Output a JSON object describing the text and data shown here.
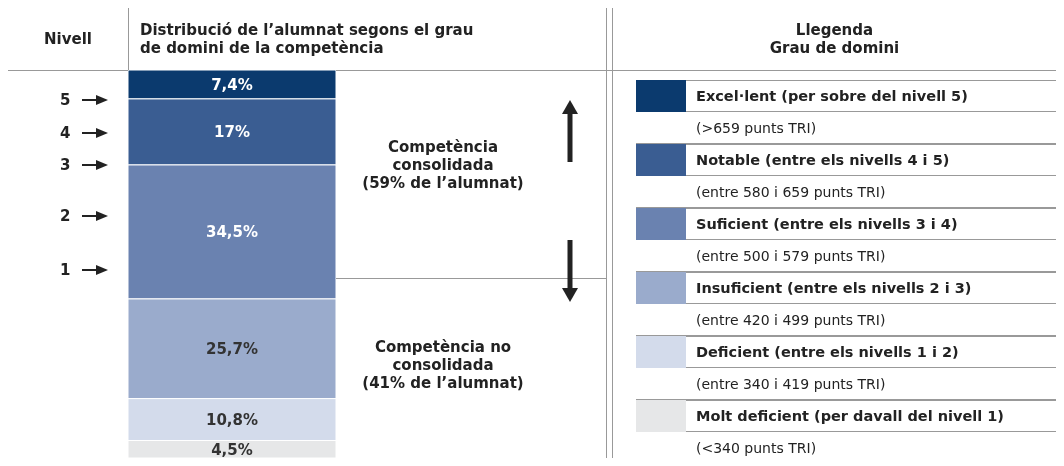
{
  "chart_data": {
    "type": "bar",
    "stacked": true,
    "title": "Distribució de l’alumnat segons el grau de domini de la competència",
    "ylabel": "Nivell",
    "legend_title": "Llegenda\nGrau de domini",
    "legend": "right",
    "tick_labels": false,
    "categories": [
      null
    ],
    "series": [
      {
        "name": "Molt deficient (per davall del nivell 1)",
        "color": "#e6e7e8",
        "values": [
          4.5
        ],
        "value_labels": [
          "4,5%"
        ]
      },
      {
        "name": "Deficient (entre els nivells 1 i 2)",
        "color": "#d3dbeb",
        "values": [
          10.8
        ],
        "value_labels": [
          "10,8%"
        ]
      },
      {
        "name": "Insuficient (entre els nivells 2 i 3)",
        "color": "#9aabcc",
        "values": [
          25.7
        ],
        "value_labels": [
          "25,7%"
        ]
      },
      {
        "name": "Suficient (entre els nivells 3 i 4)",
        "color": "#6a82b0",
        "values": [
          34.5
        ],
        "value_labels": [
          "34,5%"
        ]
      },
      {
        "name": "Notable (entre els nivells 4 i 5)",
        "color": "#3a5d92",
        "values": [
          17
        ],
        "value_labels": [
          "17%"
        ]
      },
      {
        "name": "Excel·lent (per sobre del nivell 5)",
        "color": "#0b3a6e",
        "values": [
          7.4
        ],
        "value_labels": [
          "7,4%"
        ]
      }
    ],
    "annotations": [
      "Competència consolidada\n(59% de l’alumnat)",
      "Competència no\nconsolidada\n(41% de l’alumnat)",
      "(>659 punts TRI)",
      "(entre 580 i 659 punts TRI)",
      "(entre 500 i 579 punts TRI)",
      "(entre 420 i 499 punts TRI)",
      "(entre 340 i 419 punts TRI)",
      "(<340 punts TRI)",
      "5",
      "4",
      "3",
      "2",
      "1"
    ]
  }
}
